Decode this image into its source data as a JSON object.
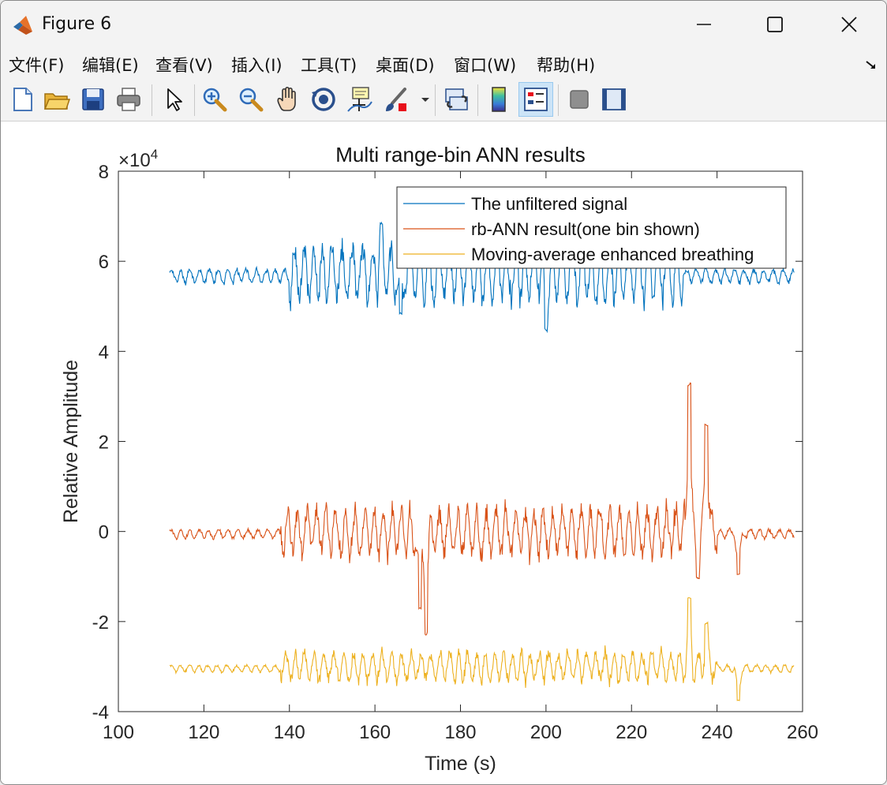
{
  "window": {
    "title": "Figure 6",
    "controls": [
      "minimize",
      "maximize",
      "close"
    ]
  },
  "menubar": {
    "items": [
      "文件(F)",
      "编辑(E)",
      "查看(V)",
      "插入(I)",
      "工具(T)",
      "桌面(D)",
      "窗口(W)",
      "帮助(H)"
    ]
  },
  "toolbar": {
    "buttons": [
      "new-figure-icon",
      "open-file-icon",
      "save-icon",
      "print-icon",
      "pointer-icon",
      "zoom-in-icon",
      "zoom-out-icon",
      "pan-icon",
      "rotate-3d-icon",
      "data-tips-icon",
      "brush-icon",
      "link-plot-icon",
      "colorbar-icon",
      "legend-icon",
      "hide-plot-tools-icon",
      "show-plot-tools-icon"
    ],
    "active": "legend-icon"
  },
  "chart_data": {
    "type": "line",
    "title": "Multi range-bin ANN results",
    "xlabel": "Time (s)",
    "ylabel": "Relative Amplitude",
    "y_exponent_label": "×10",
    "y_exponent_power": "4",
    "xlim": [
      100,
      260
    ],
    "ylim": [
      -40000,
      80000
    ],
    "xticks": [
      "100",
      "120",
      "140",
      "160",
      "180",
      "200",
      "220",
      "240",
      "260"
    ],
    "yticks": [
      "-4",
      "-2",
      "0",
      "2",
      "4",
      "6",
      "8"
    ],
    "legend_position": "top-right",
    "series": [
      {
        "name": "The unfiltered signal",
        "color": "#0072bd",
        "x_start": 112,
        "x_end": 258,
        "base": 57500,
        "amp_low": 1500,
        "amp_high": 7000,
        "mid_start": 140,
        "mid_end": 232,
        "spikes": [
          [
            161.5,
            68000
          ],
          [
            200,
            45000
          ],
          [
            166,
            48000
          ]
        ]
      },
      {
        "name": "rb-ANN result(one bin shown)",
        "color": "#d95319",
        "x_start": 112,
        "x_end": 258,
        "base": 0,
        "amp_low": 1000,
        "amp_high": 5500,
        "mid_start": 138,
        "mid_end": 240,
        "spikes": [
          [
            233.5,
            33000
          ],
          [
            237.5,
            24000
          ],
          [
            170.5,
            -17500
          ],
          [
            172,
            -22500
          ],
          [
            235.5,
            -10000
          ],
          [
            245,
            -9500
          ]
        ]
      },
      {
        "name": "Moving-average enhanced breathing",
        "color": "#edb120",
        "x_start": 112,
        "x_end": 258,
        "base": -30000,
        "amp_low": 800,
        "amp_high": 3500,
        "mid_start": 138,
        "mid_end": 240,
        "spikes": [
          [
            233.5,
            -15000
          ],
          [
            237.5,
            -20500
          ],
          [
            245,
            -37500
          ]
        ]
      }
    ]
  }
}
